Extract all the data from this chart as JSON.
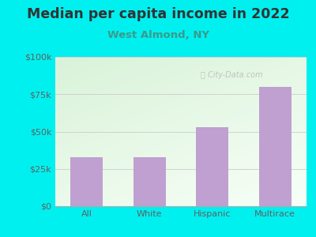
{
  "title": "Median per capita income in 2022",
  "subtitle": "West Almond, NY",
  "categories": [
    "All",
    "White",
    "Hispanic",
    "Multirace"
  ],
  "values": [
    33000,
    33000,
    53000,
    80000
  ],
  "bar_color": "#c0a0d0",
  "bar_edge_color": "#b090c0",
  "bg_outer_color": "#00f0f0",
  "title_color": "#333333",
  "subtitle_color": "#3a9a8a",
  "tick_color": "#606060",
  "grid_color": "#cccccc",
  "ylim": [
    0,
    100000
  ],
  "yticks": [
    0,
    25000,
    50000,
    75000,
    100000
  ],
  "ytick_labels": [
    "$0",
    "$25k",
    "$50k",
    "$75k",
    "$100k"
  ],
  "watermark": "City-Data.com",
  "title_fontsize": 12.5,
  "subtitle_fontsize": 9.5,
  "tick_fontsize": 8
}
